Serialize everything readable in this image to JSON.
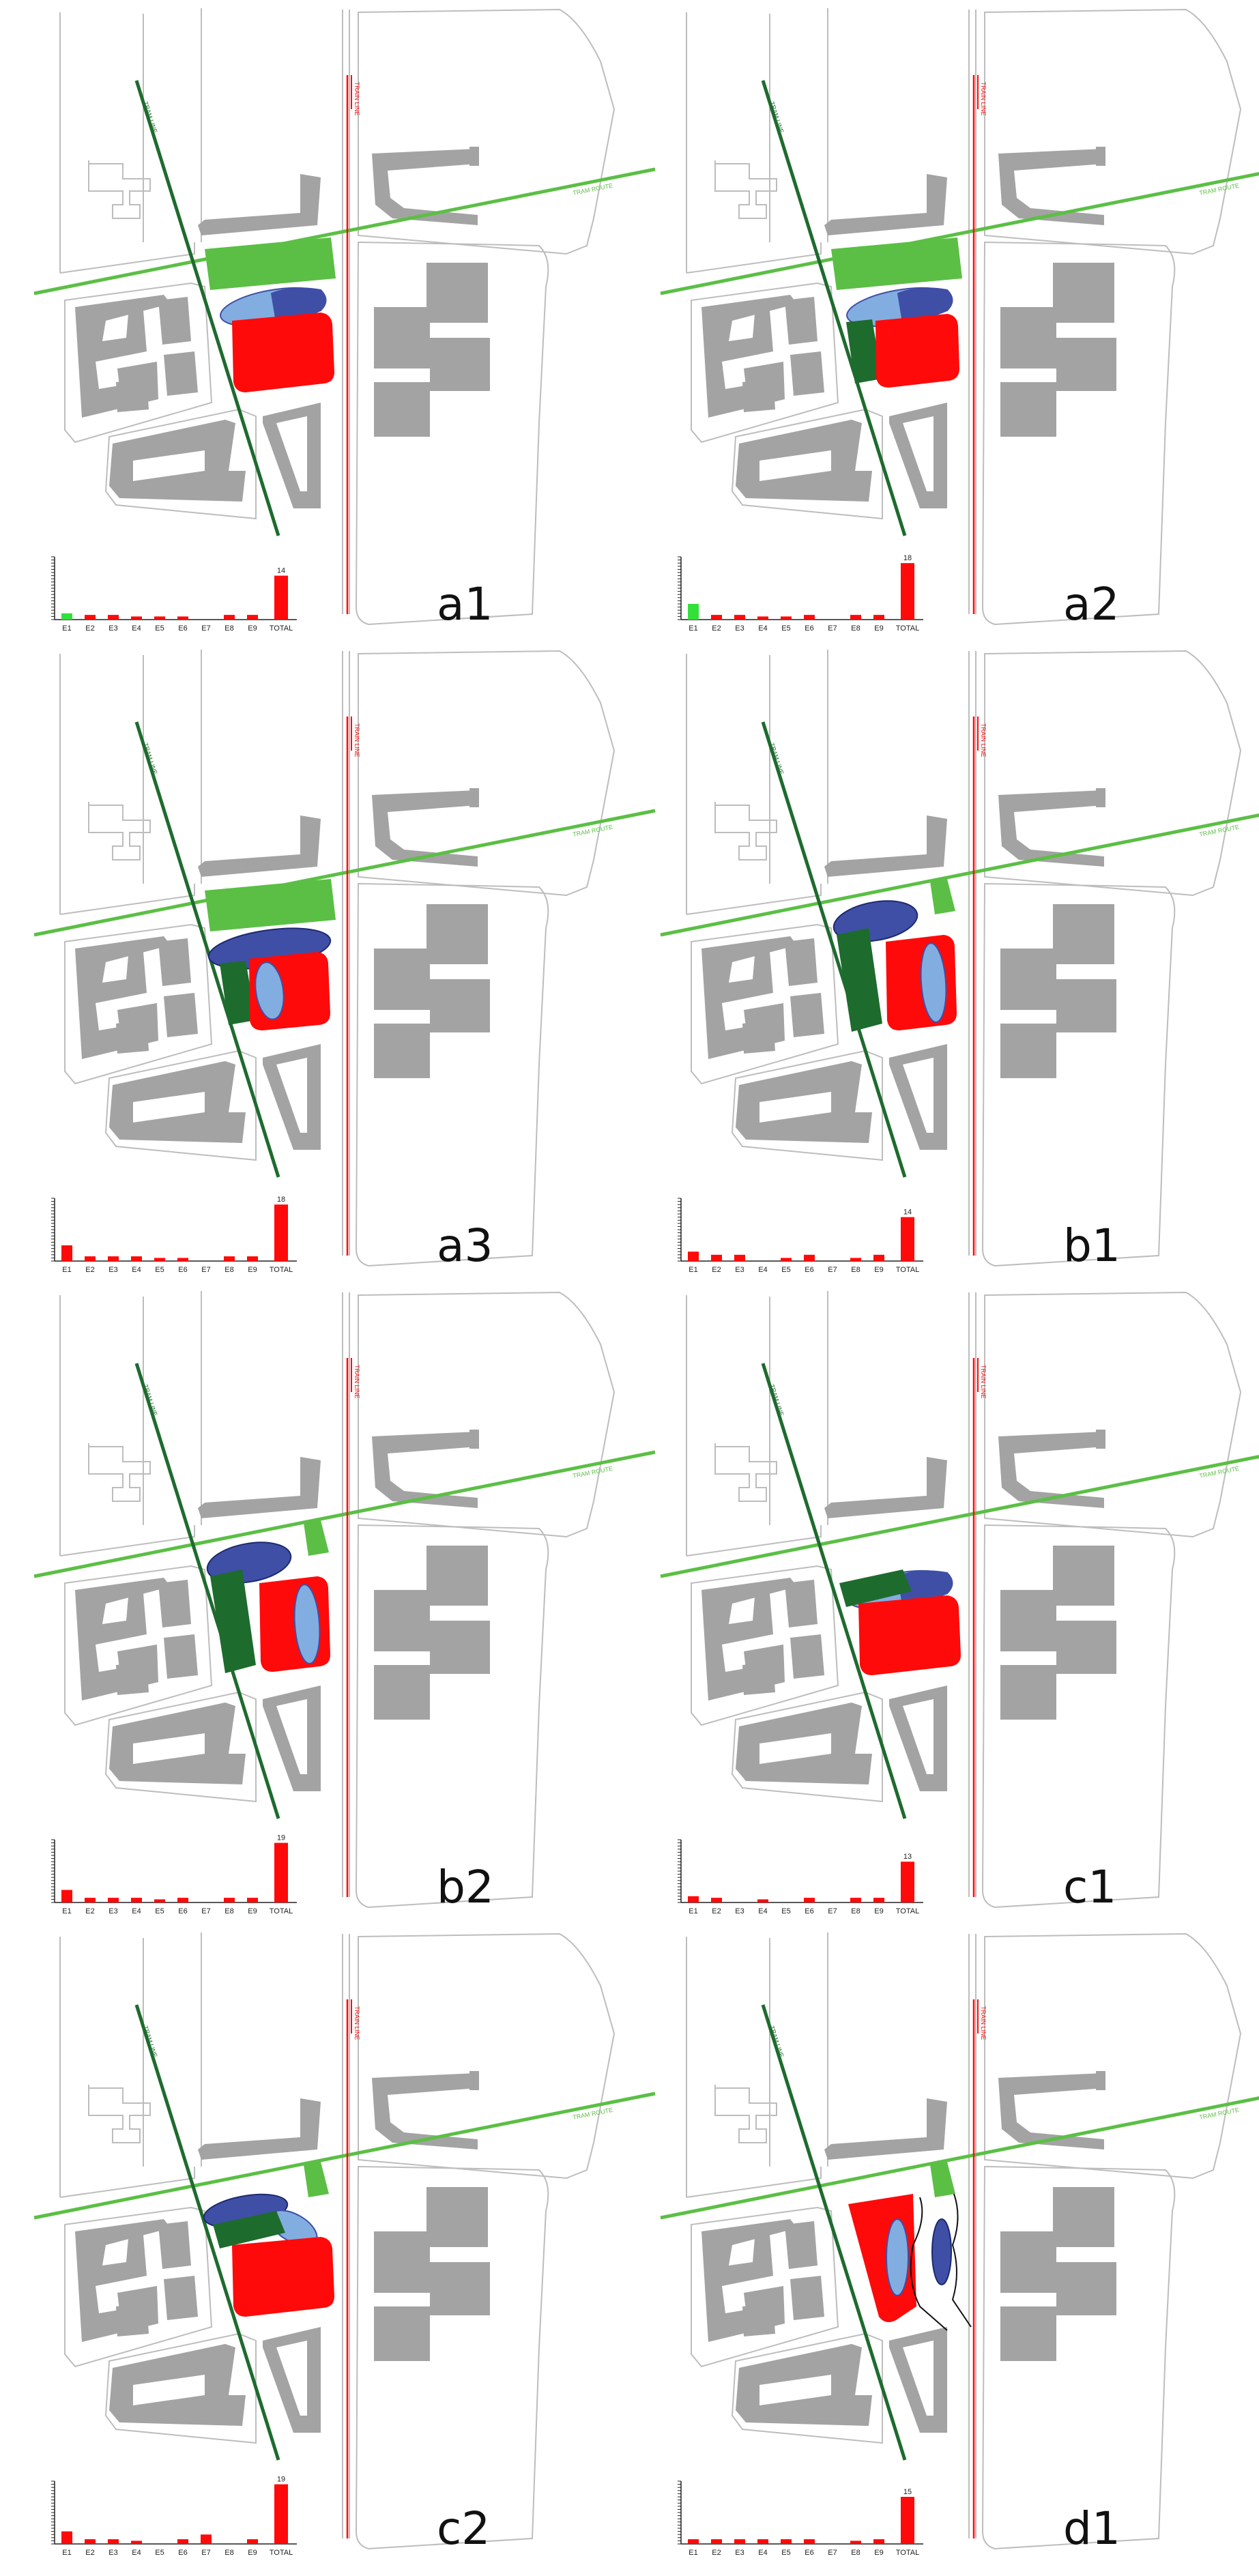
{
  "road_labels": {
    "dark_green": "TRAM LINE",
    "light_green": "TRAM ROUTE",
    "red": "TRAIN LINE"
  },
  "colors": {
    "outline": "#bdbdbd",
    "building": "#a3a3a3",
    "dark_green": "#1e6b2e",
    "light_green": "#5bbf45",
    "red": "#ff0a0a",
    "blue": "#3f4fa6",
    "light_blue": "#82ade0",
    "bright_green": "#33e03a"
  },
  "chart_axis": {
    "categories": [
      "E1",
      "E2",
      "E3",
      "E4",
      "E5",
      "E6",
      "E7",
      "E8",
      "E9",
      "TOTAL"
    ],
    "ylim": [
      0,
      20
    ]
  },
  "panels": [
    {
      "label": "a1",
      "elements": [
        "light_green_rect_top",
        "split_ellipse",
        "red_block"
      ],
      "chart_data": {
        "type": "bar",
        "categories": [
          "E1",
          "E2",
          "E3",
          "E4",
          "E5",
          "E6",
          "E7",
          "E8",
          "E9",
          "TOTAL"
        ],
        "values": [
          2,
          1.5,
          1.5,
          1,
          1,
          1,
          0,
          1.5,
          1.5,
          14
        ],
        "highlight_first": true,
        "total_label": "14"
      }
    },
    {
      "label": "a2",
      "elements": [
        "light_green_rect_top",
        "split_ellipse",
        "dark_green_small",
        "red_block_right"
      ],
      "chart_data": {
        "type": "bar",
        "categories": [
          "E1",
          "E2",
          "E3",
          "E4",
          "E5",
          "E6",
          "E7",
          "E8",
          "E9",
          "TOTAL"
        ],
        "values": [
          5,
          1.5,
          1.5,
          1,
          1,
          1.5,
          0,
          1.5,
          1.5,
          18
        ],
        "highlight_first": true,
        "total_label": "18"
      }
    },
    {
      "label": "a3",
      "elements": [
        "light_green_rect_top",
        "big_blue_ellipse",
        "dark_green_small",
        "red_block_with_oval"
      ],
      "chart_data": {
        "type": "bar",
        "categories": [
          "E1",
          "E2",
          "E3",
          "E4",
          "E5",
          "E6",
          "E7",
          "E8",
          "E9",
          "TOTAL"
        ],
        "values": [
          5,
          1.5,
          1.5,
          1.5,
          1,
          1,
          0,
          1.5,
          1.5,
          18
        ],
        "highlight_first": false,
        "total_label": "18"
      }
    },
    {
      "label": "b1",
      "elements": [
        "small_green_square",
        "blue_ellipse_small",
        "dark_green_tall",
        "red_block_with_vertical_oval"
      ],
      "chart_data": {
        "type": "bar",
        "categories": [
          "E1",
          "E2",
          "E3",
          "E4",
          "E5",
          "E6",
          "E7",
          "E8",
          "E9",
          "TOTAL"
        ],
        "values": [
          3,
          2,
          2,
          0,
          1,
          2,
          0,
          1,
          2,
          14
        ],
        "highlight_first": false,
        "total_label": "14"
      }
    },
    {
      "label": "b2",
      "elements": [
        "small_green_square",
        "blue_ellipse_small",
        "dark_green_tall",
        "red_block_with_vertical_oval"
      ],
      "chart_data": {
        "type": "bar",
        "categories": [
          "E1",
          "E2",
          "E3",
          "E4",
          "E5",
          "E6",
          "E7",
          "E8",
          "E9",
          "TOTAL"
        ],
        "values": [
          4,
          1.5,
          1.5,
          1.5,
          1,
          1.5,
          0,
          1.5,
          1.5,
          19
        ],
        "highlight_first": false,
        "total_label": "19"
      }
    },
    {
      "label": "c1",
      "elements": [
        "split_ellipse",
        "dark_green_angled",
        "red_block"
      ],
      "chart_data": {
        "type": "bar",
        "categories": [
          "E1",
          "E2",
          "E3",
          "E4",
          "E5",
          "E6",
          "E7",
          "E8",
          "E9",
          "TOTAL"
        ],
        "values": [
          2,
          1.5,
          0,
          1,
          0,
          1.5,
          0,
          1.5,
          1.5,
          13
        ],
        "highlight_first": false,
        "total_label": "13"
      }
    },
    {
      "label": "c2",
      "elements": [
        "small_green_square",
        "blue_ellipse_pair",
        "dark_green_angled",
        "red_block"
      ],
      "chart_data": {
        "type": "bar",
        "categories": [
          "E1",
          "E2",
          "E3",
          "E4",
          "E5",
          "E6",
          "E7",
          "E8",
          "E9",
          "TOTAL"
        ],
        "values": [
          4,
          1.5,
          1.5,
          1,
          0,
          1.5,
          3,
          0,
          1.5,
          19
        ],
        "highlight_first": false,
        "total_label": "19"
      }
    },
    {
      "label": "d1",
      "elements": [
        "small_green_square",
        "red_slanted_block",
        "vertical_ovals",
        "black_curves"
      ],
      "chart_data": {
        "type": "bar",
        "categories": [
          "E1",
          "E2",
          "E3",
          "E4",
          "E5",
          "E6",
          "E7",
          "E8",
          "E9",
          "TOTAL"
        ],
        "values": [
          1.5,
          1.5,
          1.5,
          1.5,
          1.5,
          1.5,
          0,
          1,
          1.5,
          15
        ],
        "highlight_first": false,
        "total_label": "15"
      }
    }
  ]
}
